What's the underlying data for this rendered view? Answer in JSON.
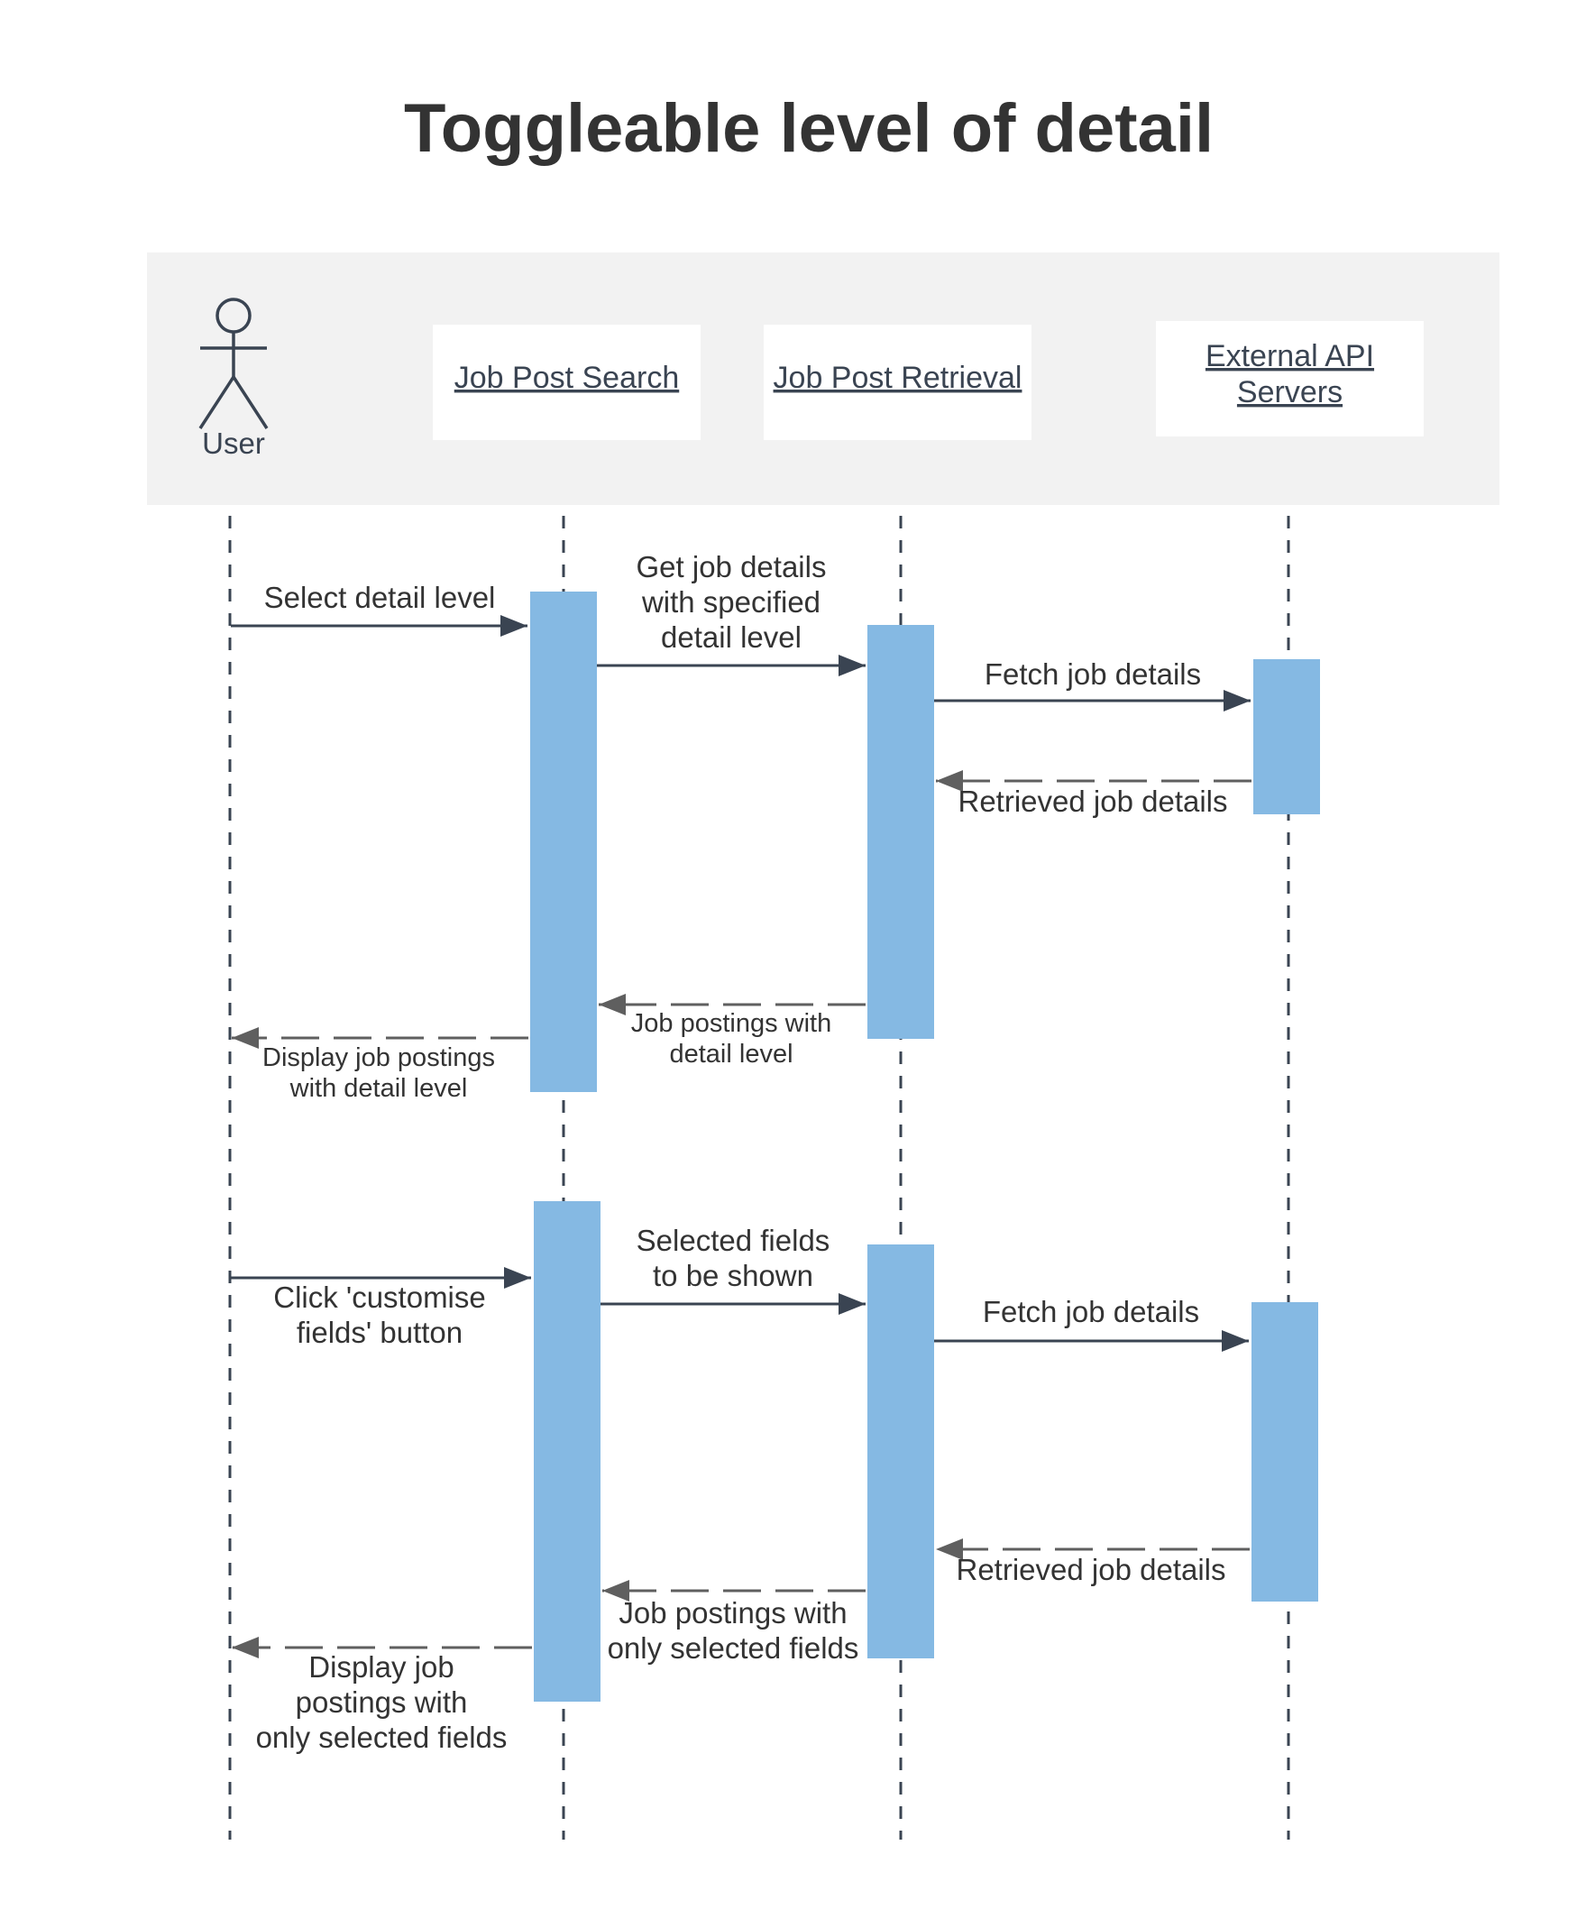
{
  "title": "Toggleable level of detail",
  "colors": {
    "header_bg": "#f2f2f2",
    "activation": "#85b9e3",
    "solid_arrow": "#3a4452",
    "dashed_arrow": "#5f5f5f",
    "text": "#333333"
  },
  "participants": [
    {
      "id": "user",
      "label": "User",
      "type": "actor",
      "icon": "stick-figure-icon"
    },
    {
      "id": "search",
      "label": "Job Post Search",
      "type": "object"
    },
    {
      "id": "retrieval",
      "label": "Job Post Retrieval",
      "type": "object"
    },
    {
      "id": "external",
      "label_lines": [
        "External API",
        "Servers"
      ],
      "type": "object"
    }
  ],
  "messages": [
    {
      "label_lines": [
        "Select detail level"
      ],
      "from": "user",
      "to": "search",
      "style": "solid"
    },
    {
      "label_lines": [
        "Get job details",
        "with specified",
        "detail level"
      ],
      "from": "search",
      "to": "retrieval",
      "style": "solid"
    },
    {
      "label_lines": [
        "Fetch job details"
      ],
      "from": "retrieval",
      "to": "external",
      "style": "solid"
    },
    {
      "label_lines": [
        "Retrieved job details"
      ],
      "from": "external",
      "to": "retrieval",
      "style": "dashed"
    },
    {
      "label_lines": [
        "Job postings with",
        "detail level"
      ],
      "from": "retrieval",
      "to": "search",
      "style": "dashed"
    },
    {
      "label_lines": [
        "Display job postings",
        "with detail level"
      ],
      "from": "search",
      "to": "user",
      "style": "dashed"
    },
    {
      "label_lines": [
        "Click 'customise",
        "fields' button"
      ],
      "from": "user",
      "to": "search",
      "style": "solid"
    },
    {
      "label_lines": [
        "Selected fields",
        "to be shown"
      ],
      "from": "search",
      "to": "retrieval",
      "style": "solid"
    },
    {
      "label_lines": [
        "Fetch job details"
      ],
      "from": "retrieval",
      "to": "external",
      "style": "solid"
    },
    {
      "label_lines": [
        "Retrieved job details"
      ],
      "from": "external",
      "to": "retrieval",
      "style": "dashed"
    },
    {
      "label_lines": [
        "Job postings with",
        "only selected fields"
      ],
      "from": "retrieval",
      "to": "search",
      "style": "dashed"
    },
    {
      "label_lines": [
        "Display job",
        "postings with",
        "only selected fields"
      ],
      "from": "search",
      "to": "user",
      "style": "dashed"
    }
  ]
}
